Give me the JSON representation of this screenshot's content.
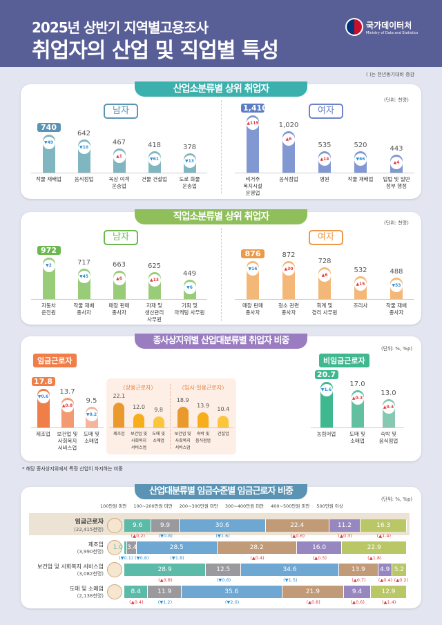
{
  "header": {
    "subtitle": "2025년 상반기 지역별고용조사",
    "title": "취업자의 산업 및 직업별 특성",
    "logo_name": "국가데이터처",
    "logo_en": "Ministry of Data and Statistics"
  },
  "note_change": "(  )는 전년동기대비 증감",
  "colors": {
    "up": "#e0393e",
    "down": "#2a8ed6"
  },
  "sec1": {
    "title": "산업소분류별 상위 취업자",
    "unit": "(단위: 천명)",
    "men_label": "남자",
    "women_label": "여자",
    "men": [
      {
        "label": "작물 재배업",
        "value": 740,
        "chg": "49",
        "dir": "down"
      },
      {
        "label": "음식점업",
        "value": 642,
        "chg": "10",
        "dir": "down"
      },
      {
        "label": "육상 여객\n운송업",
        "value": 467,
        "chg": "1",
        "dir": "up"
      },
      {
        "label": "건물 건설업",
        "value": 418,
        "chg": "61",
        "dir": "down"
      },
      {
        "label": "도로 화물\n운송업",
        "value": 378,
        "chg": "13",
        "dir": "down"
      }
    ],
    "women": [
      {
        "label": "비거주 복지시설\n운영업",
        "value": 1410,
        "chg": "119",
        "dir": "up"
      },
      {
        "label": "음식점업",
        "value": 1020,
        "chg": "6",
        "dir": "up"
      },
      {
        "label": "병원",
        "value": 535,
        "chg": "14",
        "dir": "up"
      },
      {
        "label": "작물 재배업",
        "value": 520,
        "chg": "66",
        "dir": "down"
      },
      {
        "label": "입법 및 일반\n정부 행정",
        "value": 443,
        "chg": "4",
        "dir": "up"
      }
    ]
  },
  "sec2": {
    "title": "직업소분류별 상위 취업자",
    "unit": "(단위: 천명)",
    "men_label": "남자",
    "women_label": "여자",
    "men": [
      {
        "label": "자동차\n운전원",
        "value": 972,
        "chg": "2",
        "dir": "down"
      },
      {
        "label": "작물 재배\n종사자",
        "value": 717,
        "chg": "45",
        "dir": "down"
      },
      {
        "label": "매장 판매\n종사자",
        "value": 663,
        "chg": "6",
        "dir": "up"
      },
      {
        "label": "자재 및 생산관리\n사무원",
        "value": 625,
        "chg": "13",
        "dir": "up"
      },
      {
        "label": "기획 및\n마케팅 사무원",
        "value": 449,
        "chg": "6",
        "dir": "down"
      }
    ],
    "women": [
      {
        "label": "매장 판매\n종사자",
        "value": 876,
        "chg": "16",
        "dir": "down"
      },
      {
        "label": "청소 관련\n종사자",
        "value": 872,
        "chg": "30",
        "dir": "up"
      },
      {
        "label": "회계 및\n경리 사무원",
        "value": 728,
        "chg": "6",
        "dir": "up"
      },
      {
        "label": "조리사",
        "value": 532,
        "chg": "15",
        "dir": "up"
      },
      {
        "label": "작물 재배\n종사자",
        "value": 488,
        "chg": "53",
        "dir": "down"
      }
    ]
  },
  "sec3": {
    "title": "종사상지위별 산업대분류별 취업자 비중",
    "unit": "(단위: %, %p)",
    "wage_label": "임금근로자",
    "nonwage_label": "비임금근로자",
    "wage": [
      {
        "label": "제조업",
        "value": 17.8,
        "chg": "0.6",
        "dir": "down"
      },
      {
        "label": "보건업 및\n사회복지\n서비스업",
        "value": 13.7,
        "chg": "0.8",
        "dir": "up"
      },
      {
        "label": "도매 및\n소매업",
        "value": 9.5,
        "chg": "0.2",
        "dir": "down"
      }
    ],
    "regular_label": "〈상용근로자〉",
    "regular": [
      {
        "label": "제조업",
        "value": 22.1
      },
      {
        "label": "보건업 및\n사회복지\n서비스업",
        "value": 12.0
      },
      {
        "label": "도매 및\n소매업",
        "value": 9.8
      }
    ],
    "temp_label": "〈임시·일용근로자〉",
    "temp": [
      {
        "label": "보건업 및\n사회복지\n서비스업",
        "value": 18.9
      },
      {
        "label": "숙박 및\n음식점업",
        "value": 13.9
      },
      {
        "label": "건설업",
        "value": 10.4
      }
    ],
    "nonwage": [
      {
        "label": "농림어업",
        "value": 20.7,
        "chg": "1.6",
        "dir": "down"
      },
      {
        "label": "도매 및\n소매업",
        "value": 17.0,
        "chg": "0.3",
        "dir": "up"
      },
      {
        "label": "숙박 및\n음식점업",
        "value": 13.0,
        "chg": "0.4",
        "dir": "up"
      }
    ],
    "footnote": "* 해당 종사상지위에서 특정 산업이 차지하는 비중"
  },
  "sec4": {
    "title": "산업대분류별 임금수준별 임금근로자 비중",
    "unit": "(단위: %, %p)",
    "legend": [
      {
        "label": "100만원 미만",
        "color": "#5bbaa8"
      },
      {
        "label": "100~200만원 미만",
        "color": "#9a9a9e"
      },
      {
        "label": "200~300만원 미만",
        "color": "#6fa7d3"
      },
      {
        "label": "300~400만원 미만",
        "color": "#c19a78"
      },
      {
        "label": "400~500만원 미만",
        "color": "#9787c0"
      },
      {
        "label": "500만원 이상",
        "color": "#b9c766"
      }
    ],
    "rows": [
      {
        "name": "임금근로자",
        "count": "(22,415천명)",
        "values": [
          9.6,
          9.9,
          30.6,
          22.4,
          11.2,
          16.3
        ],
        "chg": [
          [
            "up",
            "0.2"
          ],
          [
            "down",
            "0.8"
          ],
          [
            "down",
            "1.6"
          ],
          [
            "up",
            "0.6"
          ],
          [
            "up",
            "0.3"
          ],
          [
            "up",
            "1.4"
          ]
        ]
      },
      {
        "name": "제조업",
        "count": "(3,990천명)",
        "values": [
          1.0,
          3.4,
          28.5,
          28.2,
          16.0,
          22.9
        ],
        "chg": [
          [
            "down",
            "0.1"
          ],
          [
            "down",
            "0.8"
          ],
          [
            "down",
            "1.8"
          ],
          [
            "up",
            "0.4"
          ],
          [
            "up",
            "0.5"
          ],
          [
            "up",
            "1.8"
          ]
        ]
      },
      {
        "name": "보건업 및 사회복지 서비스업",
        "count": "(3,082천명)",
        "values": [
          28.9,
          12.5,
          34.6,
          13.9,
          4.9,
          5.2
        ],
        "chg": [
          [
            "up",
            "0.8"
          ],
          [
            "down",
            "0.6"
          ],
          [
            "down",
            "1.5"
          ],
          [
            "up",
            "0.7"
          ],
          [
            "up",
            "0.4"
          ],
          [
            "up",
            "0.2"
          ]
        ]
      },
      {
        "name": "도매 및 소매업",
        "count": "(2,138천명)",
        "values": [
          8.4,
          11.9,
          35.6,
          21.9,
          9.4,
          12.9
        ],
        "chg": [
          [
            "up",
            "0.4"
          ],
          [
            "down",
            "1.2"
          ],
          [
            "down",
            "2.0"
          ],
          [
            "up",
            "0.8"
          ],
          [
            "up",
            "0.6"
          ],
          [
            "up",
            "1.4"
          ]
        ]
      }
    ]
  }
}
